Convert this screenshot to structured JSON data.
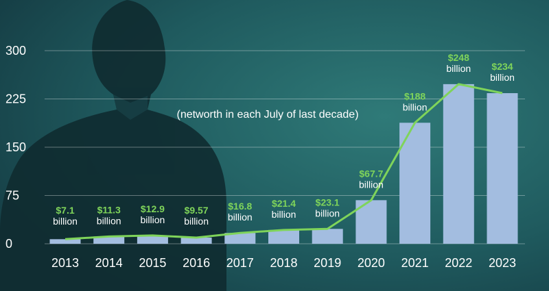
{
  "chart_data": {
    "type": "bar",
    "subtitle": "(networth in each July of last decade)",
    "categories": [
      "2013",
      "2014",
      "2015",
      "2016",
      "2017",
      "2018",
      "2019",
      "2020",
      "2021",
      "2022",
      "2023"
    ],
    "values": [
      7.1,
      11.3,
      12.9,
      9.57,
      16.8,
      21.4,
      23.1,
      67.7,
      188,
      248,
      234
    ],
    "value_labels": [
      "$7.1",
      "$11.3",
      "$12.9",
      "$9.57",
      "$16.8",
      "$21.4",
      "$23.1",
      "$67.7",
      "$188",
      "$248",
      "$234"
    ],
    "unit_label": "billion",
    "ylim": [
      0,
      300
    ],
    "yticks": [
      "0",
      "75",
      "150",
      "225",
      "300"
    ],
    "ytick_values": [
      0,
      75,
      150,
      225,
      300
    ],
    "grid": true,
    "colors": {
      "bar": "#a3bde0",
      "line": "#7fd45a",
      "value_label": "#7fd45a",
      "text": "#ffffff",
      "background": "#1c4f55"
    }
  }
}
